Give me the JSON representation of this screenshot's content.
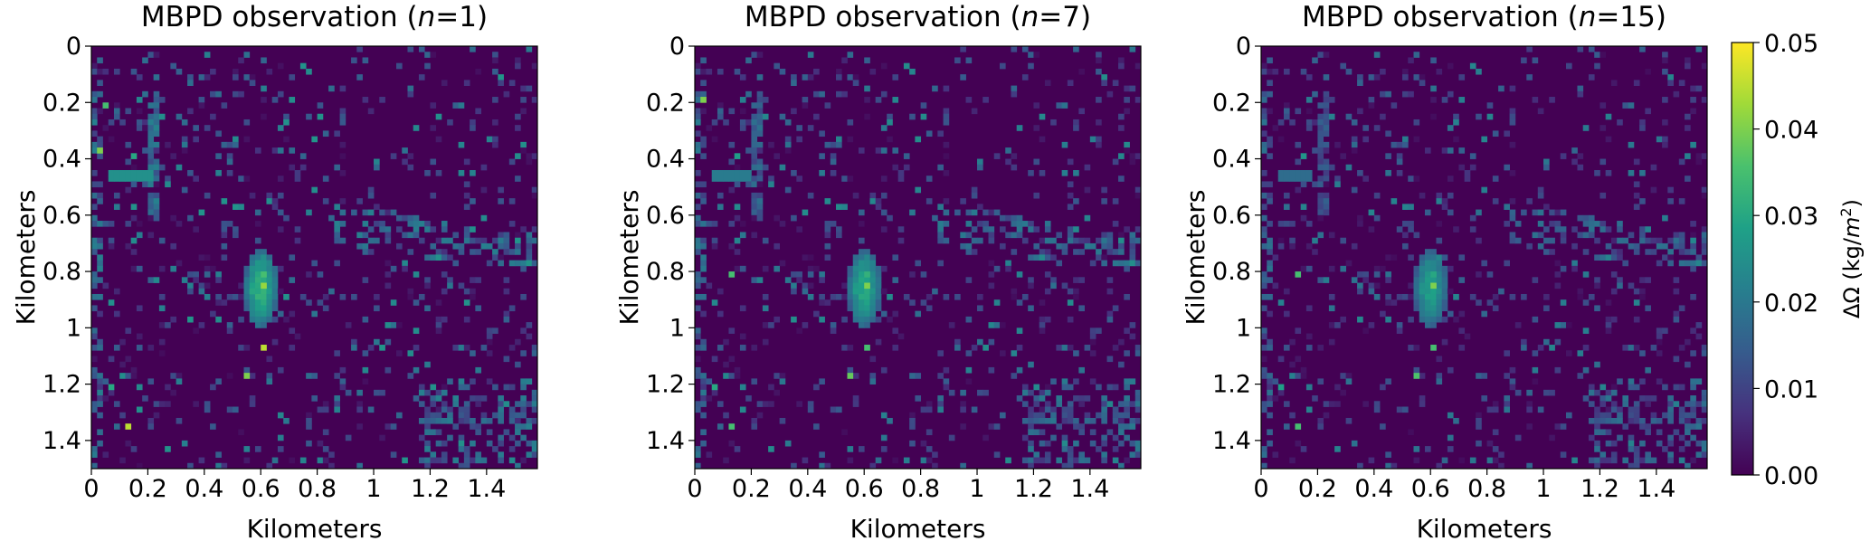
{
  "colorbar": {
    "label_prefix": "ΔΩ (kg/",
    "label_var": "m",
    "label_exp": "2",
    "label_suffix": ")",
    "ticks": [
      "0.00",
      "0.01",
      "0.02",
      "0.03",
      "0.04",
      "0.05"
    ],
    "tick_values": [
      0,
      0.01,
      0.02,
      0.03,
      0.04,
      0.05
    ],
    "vmin": 0,
    "vmax": 0.05,
    "colormap": "viridis",
    "colormap_stops": [
      "#440154",
      "#46327e",
      "#365c8d",
      "#277f8e",
      "#1fa187",
      "#4ac16d",
      "#a0da39",
      "#fde725"
    ]
  },
  "chart_data": [
    {
      "type": "heatmap",
      "title_prefix": "MBPD observation (",
      "title_var": "n",
      "title_suffix": "=1)",
      "xlabel": "Kilometers",
      "ylabel": "Kilometers",
      "xticks": [
        "0",
        "0.2",
        "0.4",
        "0.6",
        "0.8",
        "1",
        "1.2",
        "1.4"
      ],
      "xtick_values": [
        0,
        0.2,
        0.4,
        0.6,
        0.8,
        1.0,
        1.2,
        1.4
      ],
      "yticks": [
        "0",
        "0.2",
        "0.4",
        "0.6",
        "0.8",
        "1",
        "1.2",
        "1.4"
      ],
      "ytick_values": [
        0,
        0.2,
        0.4,
        0.6,
        0.8,
        1.0,
        1.2,
        1.4
      ],
      "xlim": [
        0,
        1.58
      ],
      "ylim": [
        0,
        1.5
      ],
      "y_inverted": true,
      "cell_size_km": 0.02,
      "background_value": 0.0,
      "hotspots": [
        {
          "x": 0.6,
          "y": 0.84,
          "value": 0.042
        },
        {
          "x": 0.6,
          "y": 0.8,
          "value": 0.035
        },
        {
          "x": 0.58,
          "y": 0.86,
          "value": 0.03
        },
        {
          "x": 0.6,
          "y": 1.06,
          "value": 0.045
        },
        {
          "x": 0.12,
          "y": 1.34,
          "value": 0.045
        },
        {
          "x": 0.02,
          "y": 0.36,
          "value": 0.04
        },
        {
          "x": 0.04,
          "y": 0.2,
          "value": 0.035
        },
        {
          "x": 0.14,
          "y": 0.38,
          "value": 0.03
        },
        {
          "x": 0.06,
          "y": 1.2,
          "value": 0.03
        },
        {
          "x": 0.54,
          "y": 1.18,
          "value": 0.04
        }
      ],
      "horizontal_line": {
        "y": 0.46,
        "x_from": 0.06,
        "x_to": 0.22,
        "value": 0.025
      },
      "vertical_line": {
        "x": 0.22,
        "y_from": 0.16,
        "y_to": 0.62,
        "value": 0.02
      }
    },
    {
      "type": "heatmap",
      "title_prefix": "MBPD observation (",
      "title_var": "n",
      "title_suffix": "=7)",
      "xlabel": "Kilometers",
      "ylabel": "Kilometers",
      "xticks": [
        "0",
        "0.2",
        "0.4",
        "0.6",
        "0.8",
        "1",
        "1.2",
        "1.4"
      ],
      "xtick_values": [
        0,
        0.2,
        0.4,
        0.6,
        0.8,
        1.0,
        1.2,
        1.4
      ],
      "yticks": [
        "0",
        "0.2",
        "0.4",
        "0.6",
        "0.8",
        "1",
        "1.2",
        "1.4"
      ],
      "ytick_values": [
        0,
        0.2,
        0.4,
        0.6,
        0.8,
        1.0,
        1.2,
        1.4
      ],
      "xlim": [
        0,
        1.58
      ],
      "ylim": [
        0,
        1.5
      ],
      "y_inverted": true,
      "cell_size_km": 0.02,
      "background_value": 0.0,
      "hotspots": [
        {
          "x": 0.6,
          "y": 0.84,
          "value": 0.04
        },
        {
          "x": 0.6,
          "y": 0.8,
          "value": 0.032
        },
        {
          "x": 0.58,
          "y": 0.86,
          "value": 0.028
        },
        {
          "x": 0.6,
          "y": 1.06,
          "value": 0.035
        },
        {
          "x": 0.12,
          "y": 1.34,
          "value": 0.035
        },
        {
          "x": 0.02,
          "y": 0.18,
          "value": 0.04
        },
        {
          "x": 0.12,
          "y": 0.8,
          "value": 0.035
        },
        {
          "x": 0.14,
          "y": 0.38,
          "value": 0.028
        },
        {
          "x": 0.06,
          "y": 1.2,
          "value": 0.03
        },
        {
          "x": 0.54,
          "y": 1.18,
          "value": 0.038
        }
      ],
      "horizontal_line": {
        "y": 0.46,
        "x_from": 0.06,
        "x_to": 0.2,
        "value": 0.022
      },
      "vertical_line": {
        "x": 0.22,
        "y_from": 0.16,
        "y_to": 0.62,
        "value": 0.018
      }
    },
    {
      "type": "heatmap",
      "title_prefix": "MBPD observation (",
      "title_var": "n",
      "title_suffix": "=15)",
      "xlabel": "Kilometers",
      "ylabel": "Kilometers",
      "xticks": [
        "0",
        "0.2",
        "0.4",
        "0.6",
        "0.8",
        "1",
        "1.2",
        "1.4"
      ],
      "xtick_values": [
        0,
        0.2,
        0.4,
        0.6,
        0.8,
        1.0,
        1.2,
        1.4
      ],
      "yticks": [
        "0",
        "0.2",
        "0.4",
        "0.6",
        "0.8",
        "1",
        "1.2",
        "1.4"
      ],
      "ytick_values": [
        0,
        0.2,
        0.4,
        0.6,
        0.8,
        1.0,
        1.2,
        1.4
      ],
      "xlim": [
        0,
        1.58
      ],
      "ylim": [
        0,
        1.5
      ],
      "y_inverted": true,
      "cell_size_km": 0.02,
      "background_value": 0.0,
      "hotspots": [
        {
          "x": 0.6,
          "y": 0.84,
          "value": 0.04
        },
        {
          "x": 0.6,
          "y": 0.8,
          "value": 0.03
        },
        {
          "x": 0.58,
          "y": 0.86,
          "value": 0.026
        },
        {
          "x": 0.6,
          "y": 1.06,
          "value": 0.035
        },
        {
          "x": 0.12,
          "y": 1.34,
          "value": 0.035
        },
        {
          "x": 0.12,
          "y": 0.8,
          "value": 0.035
        },
        {
          "x": 0.14,
          "y": 0.38,
          "value": 0.026
        },
        {
          "x": 0.06,
          "y": 1.2,
          "value": 0.028
        },
        {
          "x": 0.54,
          "y": 1.18,
          "value": 0.036
        }
      ],
      "horizontal_line": {
        "y": 0.46,
        "x_from": 0.06,
        "x_to": 0.18,
        "value": 0.02
      },
      "vertical_line": {
        "x": 0.22,
        "y_from": 0.16,
        "y_to": 0.6,
        "value": 0.016
      }
    }
  ]
}
